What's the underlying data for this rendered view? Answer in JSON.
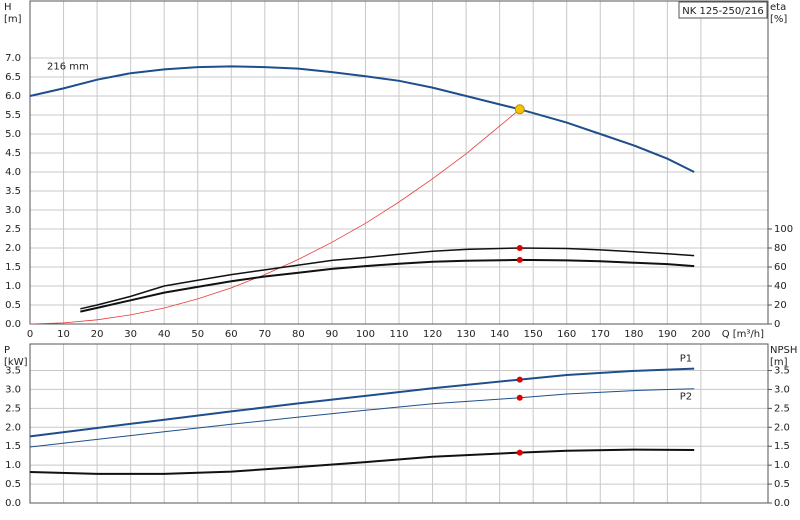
{
  "chart_data": [
    {
      "type": "line",
      "title": "NK 125-250/216",
      "xlabel": "Q [m³/h]",
      "ylabel": [
        "H",
        "[m]"
      ],
      "y2label": [
        "eta",
        "[%]"
      ],
      "xlim": [
        0,
        220
      ],
      "ylim": [
        0,
        8.5
      ],
      "y2lim": [
        0,
        340
      ],
      "xticks": [
        0,
        10,
        20,
        30,
        40,
        50,
        60,
        70,
        80,
        90,
        100,
        110,
        120,
        130,
        140,
        150,
        160,
        170,
        180,
        190,
        200
      ],
      "yticks": [
        {
          "value": 0,
          "label": "0.0"
        },
        0.5,
        {
          "value": 1,
          "label": "1.0"
        },
        1.5,
        {
          "value": 2,
          "label": "2.0"
        },
        2.5,
        {
          "value": 3,
          "label": "3.0"
        },
        3.5,
        {
          "value": 4,
          "label": "4.0"
        },
        4.5,
        {
          "value": 5,
          "label": "5.0"
        },
        5.5,
        {
          "value": 6,
          "label": "6.0"
        },
        6.5,
        {
          "value": 7,
          "label": "7.0"
        }
      ],
      "y2ticks": [
        0,
        20,
        40,
        60,
        80,
        100
      ],
      "grid": true,
      "series": [
        {
          "name": "216 mm",
          "color": "#1f4e8c",
          "width": 2,
          "x": [
            0,
            10,
            20,
            30,
            40,
            50,
            60,
            70,
            80,
            90,
            100,
            110,
            120,
            130,
            140,
            146,
            150,
            160,
            170,
            180,
            190,
            198
          ],
          "values": [
            6.0,
            6.2,
            6.43,
            6.6,
            6.7,
            6.76,
            6.78,
            6.76,
            6.72,
            6.63,
            6.52,
            6.4,
            6.22,
            6.0,
            5.78,
            5.65,
            5.55,
            5.3,
            5.0,
            4.7,
            4.35,
            4.0
          ]
        },
        {
          "color": "#e83a3a",
          "width": 0.8,
          "x": [
            0,
            10,
            20,
            30,
            40,
            50,
            60,
            70,
            80,
            90,
            100,
            110,
            120,
            130,
            146
          ],
          "values": [
            0,
            0.03,
            0.11,
            0.24,
            0.42,
            0.66,
            0.95,
            1.3,
            1.7,
            2.15,
            2.65,
            3.21,
            3.82,
            4.48,
            5.65
          ]
        },
        {
          "color": "#111",
          "width": 1.5,
          "axis": "y2",
          "x": [
            15,
            20,
            30,
            40,
            50,
            60,
            70,
            80,
            90,
            100,
            110,
            120,
            130,
            146,
            160,
            170,
            180,
            190,
            198
          ],
          "values": [
            16,
            20,
            29,
            40,
            46,
            52,
            57,
            62,
            67,
            70,
            73.5,
            76.5,
            78.5,
            80,
            79.5,
            78,
            76,
            74,
            72
          ]
        },
        {
          "color": "#111",
          "width": 2,
          "axis": "y2",
          "x": [
            15,
            20,
            30,
            40,
            50,
            60,
            70,
            80,
            90,
            100,
            110,
            120,
            130,
            146,
            160,
            170,
            180,
            190,
            198
          ],
          "values": [
            13,
            17,
            25,
            33,
            39,
            45,
            50,
            54,
            58,
            61,
            63.5,
            65.5,
            66.5,
            67.5,
            67,
            66,
            64.5,
            63,
            61
          ]
        }
      ],
      "points": [
        {
          "x": 146,
          "y": 5.65,
          "color": "#f5c400"
        },
        {
          "x": 146,
          "y": 80,
          "axis": "y2",
          "color": "#e00000"
        },
        {
          "x": 146,
          "y": 67.5,
          "axis": "y2",
          "color": "#e00000"
        }
      ]
    },
    {
      "type": "line",
      "ylabel": [
        "P",
        "[kW]"
      ],
      "y2label": [
        "NPSH",
        "[m]"
      ],
      "xlim": [
        0,
        220
      ],
      "ylim": [
        0,
        4.2
      ],
      "y2lim": [
        0,
        4.2
      ],
      "xticks": [
        0,
        10,
        20,
        30,
        40,
        50,
        60,
        70,
        80,
        90,
        100,
        110,
        120,
        130,
        140,
        150,
        160,
        170,
        180,
        190,
        200
      ],
      "yticks": [
        {
          "value": 0,
          "label": "0.0"
        },
        0.5,
        {
          "value": 1,
          "label": "1.0"
        },
        1.5,
        {
          "value": 2,
          "label": "2.0"
        },
        2.5,
        {
          "value": 3,
          "label": "3.0"
        },
        3.5
      ],
      "y2ticks": [
        {
          "value": 0,
          "label": "0.0"
        },
        0.5,
        {
          "value": 1,
          "label": "1.0"
        },
        1.5,
        {
          "value": 2,
          "label": "2.0"
        },
        2.5,
        {
          "value": 3,
          "label": "3.0"
        },
        3.5
      ],
      "grid": true,
      "series": [
        {
          "name": "P1",
          "color": "#1f4e8c",
          "width": 2,
          "x": [
            0,
            20,
            40,
            60,
            80,
            100,
            120,
            146,
            160,
            180,
            198
          ],
          "values": [
            1.76,
            1.98,
            2.2,
            2.42,
            2.63,
            2.83,
            3.03,
            3.26,
            3.38,
            3.49,
            3.55
          ]
        },
        {
          "name": "P2",
          "color": "#1f4e8c",
          "width": 1,
          "x": [
            0,
            20,
            40,
            60,
            80,
            100,
            120,
            146,
            160,
            180,
            198
          ],
          "values": [
            1.48,
            1.68,
            1.88,
            2.08,
            2.27,
            2.45,
            2.62,
            2.78,
            2.88,
            2.97,
            3.02
          ]
        },
        {
          "color": "#111",
          "width": 2,
          "axis": "y2",
          "x": [
            0,
            20,
            40,
            60,
            80,
            100,
            120,
            146,
            160,
            180,
            198
          ],
          "values": [
            0.82,
            0.77,
            0.77,
            0.83,
            0.95,
            1.08,
            1.22,
            1.33,
            1.38,
            1.41,
            1.4
          ]
        }
      ],
      "points": [
        {
          "x": 146,
          "y": 3.26,
          "color": "#e00000"
        },
        {
          "x": 146,
          "y": 2.78,
          "color": "#e00000"
        },
        {
          "x": 146,
          "y": 1.33,
          "axis": "y2",
          "color": "#e00000"
        }
      ]
    }
  ]
}
